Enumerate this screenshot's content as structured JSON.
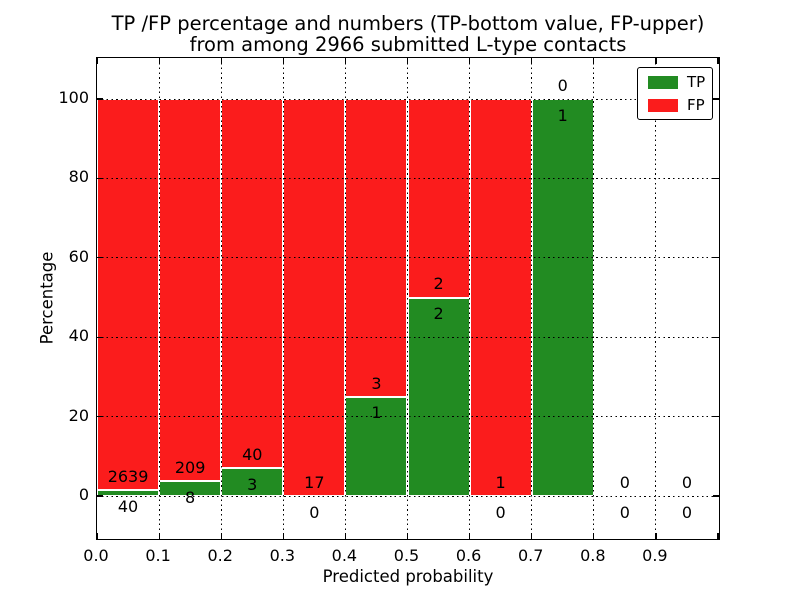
{
  "title": {
    "line1": "TP /FP percentage and numbers (TP-bottom value, FP-upper)",
    "line2": "from among 2966 submitted L-type contacts"
  },
  "axes": {
    "xlabel": "Predicted probability",
    "ylabel": "Percentage"
  },
  "colors": {
    "tp_green": "#228b22",
    "fp_red": "#fb1c1c",
    "text": "#000000",
    "background": "#ffffff"
  },
  "legend": {
    "position": "upper right",
    "entries": [
      {
        "label": "TP",
        "color": "#228b22"
      },
      {
        "label": "FP",
        "color": "#fb1c1c"
      }
    ]
  },
  "chart_data": {
    "type": "bar",
    "stacked": true,
    "orientation": "vertical",
    "title": "TP /FP percentage and numbers (TP-bottom value, FP-upper) from among 2966 submitted L-type contacts",
    "xlabel": "Predicted probability",
    "ylabel": "Percentage",
    "total_contacts": 2966,
    "bin_width": 0.1,
    "bins": [
      {
        "range": "0.0-0.1",
        "tp": 40,
        "fp": 2639,
        "tp_pct": 1.49
      },
      {
        "range": "0.1-0.2",
        "tp": 8,
        "fp": 209,
        "tp_pct": 3.69
      },
      {
        "range": "0.2-0.3",
        "tp": 3,
        "fp": 40,
        "tp_pct": 6.98
      },
      {
        "range": "0.3-0.4",
        "tp": 0,
        "fp": 17,
        "tp_pct": 0
      },
      {
        "range": "0.4-0.5",
        "tp": 1,
        "fp": 3,
        "tp_pct": 25
      },
      {
        "range": "0.5-0.6",
        "tp": 2,
        "fp": 2,
        "tp_pct": 50
      },
      {
        "range": "0.6-0.7",
        "tp": 0,
        "fp": 1,
        "tp_pct": 0
      },
      {
        "range": "0.7-0.8",
        "tp": 1,
        "fp": 0,
        "tp_pct": 100
      },
      {
        "range": "0.8-0.9",
        "tp": 0,
        "fp": 0,
        "tp_pct": null
      },
      {
        "range": "0.9-1.0",
        "tp": 0,
        "fp": 0,
        "tp_pct": null
      }
    ],
    "series": [
      {
        "name": "TP",
        "color": "#228b22",
        "counts": [
          40,
          8,
          3,
          0,
          1,
          2,
          0,
          1,
          0,
          0
        ]
      },
      {
        "name": "FP",
        "color": "#fb1c1c",
        "counts": [
          2639,
          209,
          40,
          17,
          3,
          2,
          1,
          0,
          0,
          0
        ]
      }
    ],
    "bar_total_percent": 100,
    "xticks": [
      "0.0",
      "0.1",
      "0.2",
      "0.3",
      "0.4",
      "0.5",
      "0.6",
      "0.7",
      "0.8",
      "0.9"
    ],
    "yticks": [
      0,
      20,
      40,
      60,
      80,
      100
    ],
    "xlim": [
      0.0,
      1.0
    ],
    "grid": "dotted",
    "legend_position": "upper right"
  }
}
